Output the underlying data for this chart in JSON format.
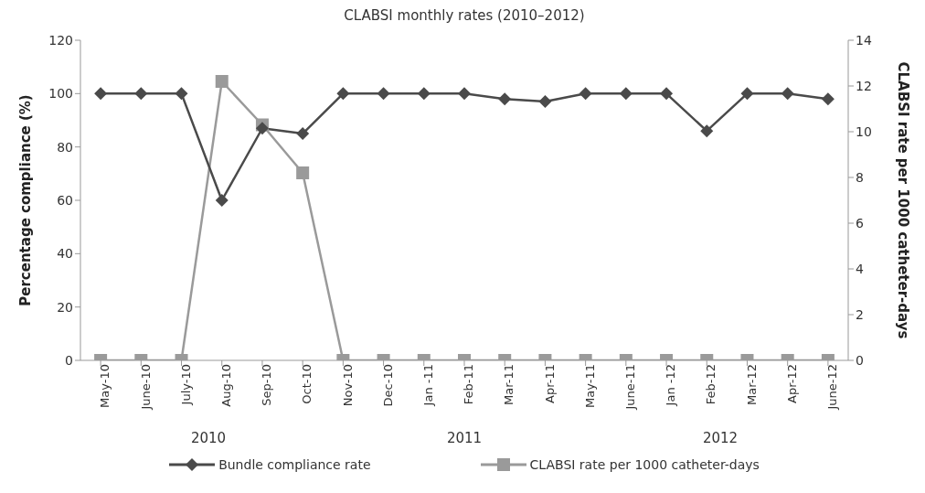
{
  "chart_data": {
    "type": "line",
    "title": "CLABSI monthly rates (2010–2012)",
    "ylabel": "Percentage compliance (%)",
    "y2label": "CLABSI rate per 1000 catheter-days",
    "categories": [
      "May-10",
      "June-10",
      "July-10",
      "Aug-10",
      "Sep-10",
      "Oct-10",
      "Nov-10",
      "Dec-10",
      "Jan -11",
      "Feb-11",
      "Mar-11",
      "Apr-11",
      "May-11",
      "June-11",
      "Jan -12",
      "Feb-12",
      "Mar-12",
      "Apr-12",
      "June-12"
    ],
    "series": [
      {
        "name": "Bundle compliance rate",
        "color": "#4a4a4a",
        "marker": "diamond",
        "values": [
          100,
          100,
          100,
          60,
          87,
          85,
          100,
          100,
          100,
          100,
          98,
          97,
          100,
          100,
          100,
          86,
          100,
          100,
          98
        ]
      },
      {
        "name": "CLABSI rate per 1000 catheter-days",
        "color": "#9a9a9a",
        "marker": "square",
        "axis": "y2",
        "values": [
          0,
          0,
          0,
          12.2,
          10.3,
          8.2,
          0,
          0,
          0,
          0,
          0,
          0,
          0,
          0,
          0,
          0,
          0,
          0,
          0
        ]
      }
    ],
    "ylim": [
      0,
      120
    ],
    "yticks": [
      0,
      20,
      40,
      60,
      80,
      100,
      120
    ],
    "y2lim": [
      0,
      14
    ],
    "y2ticks": [
      0,
      2,
      4,
      6,
      8,
      10,
      12,
      14
    ],
    "annotations": [
      "2010",
      "2011",
      "2012"
    ],
    "grid": false,
    "legend": "bottom"
  }
}
